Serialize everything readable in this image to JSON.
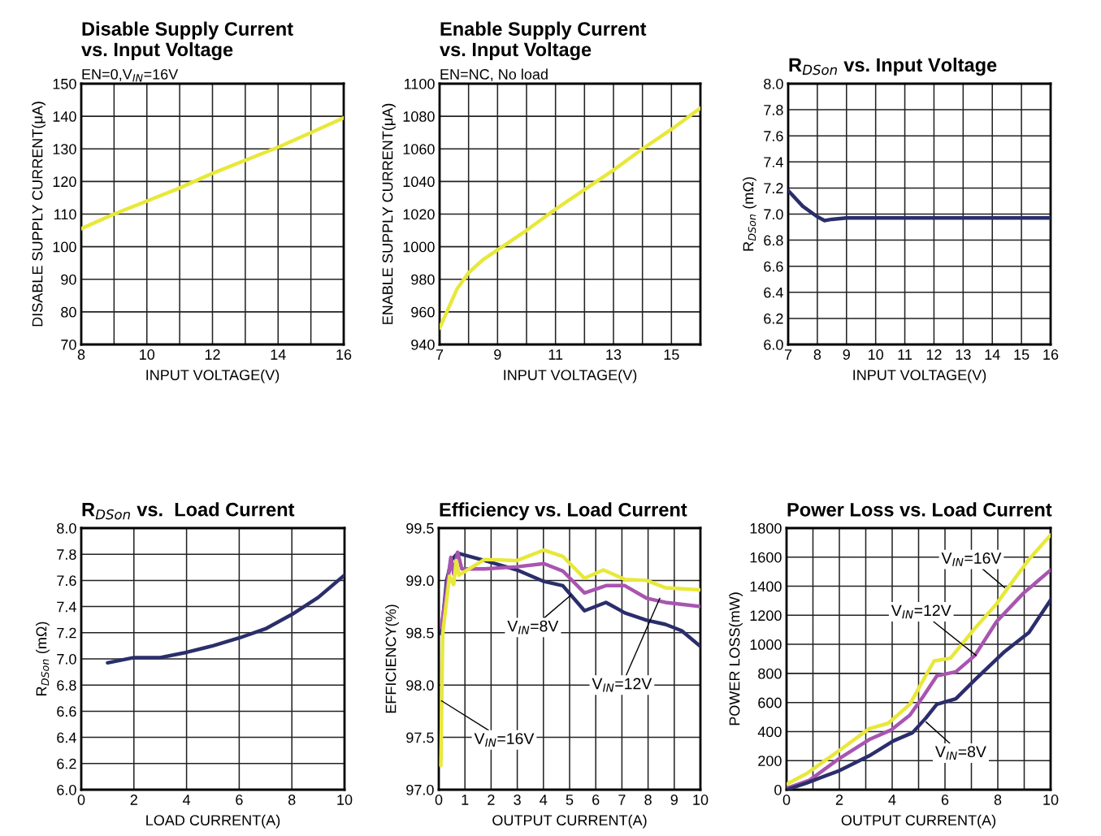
{
  "chart_data": [
    {
      "type": "line",
      "title": "Disable Supply Current\nvs. Input Voltage",
      "subtitle": "EN=0,V$_{IN}$=16V",
      "xlabel": "INPUT VOLTAGE(V)",
      "ylabel": "DISABLE SUPPLY CURRENT(μA)",
      "xlim": [
        8,
        16
      ],
      "ylim": [
        70,
        150
      ],
      "xticks": [
        8,
        {
          "value": 9,
          "label": null
        },
        10,
        {
          "value": 11,
          "label": null
        },
        12,
        {
          "value": 13,
          "label": null
        },
        14,
        {
          "value": 15,
          "label": null
        },
        16
      ],
      "yticks": [
        70,
        80,
        90,
        100,
        110,
        120,
        130,
        140,
        150
      ],
      "grid": true,
      "series": [
        {
          "color": "#e8e83a",
          "x": [
            8,
            9,
            10,
            11,
            12,
            13,
            14,
            15,
            16
          ],
          "values": [
            105.5,
            110,
            114,
            118,
            122.5,
            126.5,
            130.5,
            135,
            139.5
          ]
        }
      ]
    },
    {
      "type": "line",
      "title": "Enable Supply Current\nvs. Input Voltage",
      "subtitle": "EN=NC, No load",
      "xlabel": "INPUT VOLTAGE(V)",
      "ylabel": "ENABLE SUPPLY CURRENT(μA)",
      "xlim": [
        7,
        16
      ],
      "ylim": [
        940,
        1100
      ],
      "xticks": [
        7,
        {
          "value": 8,
          "label": null
        },
        9,
        {
          "value": 10,
          "label": null
        },
        11,
        {
          "value": 12,
          "label": null
        },
        13,
        {
          "value": 14,
          "label": null
        },
        15,
        {
          "value": 16,
          "label": null
        }
      ],
      "yticks": [
        940,
        960,
        980,
        1000,
        1020,
        1040,
        1060,
        1080,
        1100
      ],
      "grid": true,
      "series": [
        {
          "color": "#e8e83a",
          "x": [
            7,
            7.3,
            7.6,
            8,
            8.5,
            9,
            10,
            11,
            12,
            13,
            14,
            15,
            16
          ],
          "values": [
            950,
            962,
            974,
            984,
            992,
            998,
            1010,
            1023,
            1035,
            1047,
            1060,
            1072,
            1085
          ]
        }
      ]
    },
    {
      "type": "line",
      "title": "R$_{DSon}$ vs. Input Voltage",
      "xlabel": "INPUT VOLTAGE(V)",
      "ylabel": "R$_{DSon}$ (mΩ)",
      "xlim": [
        7,
        16
      ],
      "ylim": [
        6.0,
        8.0
      ],
      "xticks": [
        7,
        8,
        9,
        10,
        11,
        12,
        13,
        14,
        15,
        16
      ],
      "yticks": [
        {
          "value": 6.0,
          "label": "6.0"
        },
        6.2,
        6.4,
        6.6,
        6.8,
        {
          "value": 7.0,
          "label": "7.0"
        },
        7.2,
        7.4,
        7.6,
        7.8,
        {
          "value": 8.0,
          "label": "8.0"
        }
      ],
      "grid": true,
      "series": [
        {
          "color": "#2b2e6b",
          "x": [
            7,
            7.5,
            8,
            8.25,
            8.5,
            9,
            10,
            16
          ],
          "values": [
            7.18,
            7.06,
            6.98,
            6.95,
            6.96,
            6.97,
            6.97,
            6.97
          ]
        }
      ]
    },
    {
      "type": "line",
      "title": "R$_{DSon}$ vs.  Load Current",
      "xlabel": "LOAD CURRENT(A)",
      "ylabel": "R$_{DSon}$ (mΩ)",
      "xlim": [
        0,
        10
      ],
      "ylim": [
        6.0,
        8.0
      ],
      "xticks": [
        0,
        2,
        4,
        6,
        8,
        10
      ],
      "yticks": [
        {
          "value": 6.0,
          "label": "6.0"
        },
        6.2,
        6.4,
        6.6,
        6.8,
        {
          "value": 7.0,
          "label": "7.0"
        },
        7.2,
        7.4,
        7.6,
        7.8,
        {
          "value": 8.0,
          "label": "8.0"
        }
      ],
      "grid": true,
      "series": [
        {
          "color": "#2b2e6b",
          "x": [
            1,
            2,
            3,
            4,
            5,
            6,
            7,
            8,
            9,
            10
          ],
          "values": [
            6.97,
            7.01,
            7.01,
            7.05,
            7.1,
            7.16,
            7.23,
            7.34,
            7.47,
            7.64
          ]
        }
      ]
    },
    {
      "type": "line",
      "title": "Efficiency vs. Load Current",
      "xlabel": "OUTPUT CURRENT(A)",
      "ylabel": "EFFICIENCY(%)",
      "xlim": [
        0,
        10
      ],
      "ylim": [
        97.0,
        99.5
      ],
      "xticks": [
        0,
        1,
        2,
        3,
        4,
        5,
        6,
        7,
        8,
        9,
        10
      ],
      "yticks": [
        {
          "value": 97.0,
          "label": "97.0"
        },
        97.5,
        {
          "value": 98.0,
          "label": "98.0"
        },
        98.5,
        {
          "value": 99.0,
          "label": "99.0"
        },
        99.5
      ],
      "grid": true,
      "series": [
        {
          "color": "#2b2e6b",
          "x": [
            0.1,
            0.3,
            0.5,
            0.72,
            1.75,
            2.99,
            4.02,
            4.74,
            5.57,
            6.39,
            7.11,
            7.94,
            8.66,
            9.28,
            10
          ],
          "values": [
            98.49,
            99.0,
            99.2,
            99.26,
            99.19,
            99.1,
            98.99,
            98.95,
            98.71,
            98.79,
            98.69,
            98.62,
            98.58,
            98.52,
            98.37
          ]
        },
        {
          "color": "#a855b0",
          "x": [
            0.1,
            0.46,
            0.57,
            0.72,
            0.88,
            1.75,
            2.99,
            4.02,
            4.74,
            5.57,
            6.39,
            7.11,
            7.94,
            8.66,
            10
          ],
          "values": [
            98.55,
            99.22,
            99.06,
            99.27,
            99.11,
            99.11,
            99.13,
            99.16,
            99.09,
            98.88,
            98.95,
            98.95,
            98.83,
            98.79,
            98.75
          ]
        },
        {
          "color": "#e8e83a",
          "x": [
            0.08,
            0.15,
            0.41,
            0.57,
            0.67,
            0.77,
            1.75,
            2.99,
            4.02,
            4.74,
            5.57,
            6.29,
            7.11,
            7.94,
            8.66,
            10
          ],
          "values": [
            97.23,
            98.49,
            99.04,
            98.96,
            99.19,
            99.05,
            99.2,
            99.19,
            99.29,
            99.23,
            99.02,
            99.1,
            99.01,
            99.0,
            98.93,
            98.91
          ]
        }
      ],
      "annotations": [
        {
          "text": "V$_{IN}$=8V",
          "x": 5.05,
          "y": 98.86
        },
        {
          "text": "V$_{IN}$=12V",
          "x": 8.45,
          "y": 98.83
        },
        {
          "text": "V$_{IN}$=16V",
          "x": 0.1,
          "y": 97.85
        }
      ]
    },
    {
      "type": "line",
      "title": "Power Loss vs. Load Current",
      "xlabel": "OUTPUT CURRENT(A)",
      "ylabel": "POWER LOSS(mW)",
      "xlim": [
        0,
        10
      ],
      "ylim": [
        0,
        1800
      ],
      "xticks": [
        0,
        {
          "value": 1,
          "label": null
        },
        2,
        {
          "value": 3,
          "label": null
        },
        4,
        {
          "value": 5,
          "label": null
        },
        6,
        {
          "value": 7,
          "label": null
        },
        8,
        {
          "value": 9,
          "label": null
        },
        10
      ],
      "yticks": [
        0,
        200,
        400,
        600,
        800,
        1000,
        1200,
        1400,
        1600,
        1800
      ],
      "grid": true,
      "series": [
        {
          "color": "#e8e83a",
          "x": [
            0,
            0.77,
            2,
            3.13,
            3.85,
            4.67,
            5.18,
            5.59,
            6.21,
            7.13,
            7.95,
            8.46,
            9.18,
            10
          ],
          "values": [
            37,
            112,
            270,
            420,
            457,
            588,
            755,
            886,
            905,
            1110,
            1278,
            1408,
            1585,
            1753
          ]
        },
        {
          "color": "#a855b0",
          "x": [
            0,
            0.87,
            2,
            3.13,
            3.95,
            4.67,
            5.18,
            5.69,
            6.41,
            7.13,
            7.95,
            8.97,
            10
          ],
          "values": [
            9,
            65,
            215,
            345,
            410,
            513,
            643,
            783,
            811,
            923,
            1156,
            1352,
            1511
          ]
        },
        {
          "color": "#2b2e6b",
          "x": [
            0,
            0.77,
            2,
            3.13,
            4.05,
            4.77,
            5.28,
            5.69,
            6.41,
            7.13,
            8.26,
            9.18,
            10
          ],
          "values": [
            0,
            47,
            131,
            233,
            336,
            392,
            494,
            588,
            625,
            755,
            951,
            1082,
            1306
          ]
        }
      ],
      "annotations": [
        {
          "text": "V$_{IN}$=16V",
          "x": 8.26,
          "y": 1390
        },
        {
          "text": "V$_{IN}$=12V",
          "x": 7.18,
          "y": 923
        },
        {
          "text": "V$_{IN}$=8V",
          "x": 5.28,
          "y": 466
        }
      ]
    }
  ]
}
